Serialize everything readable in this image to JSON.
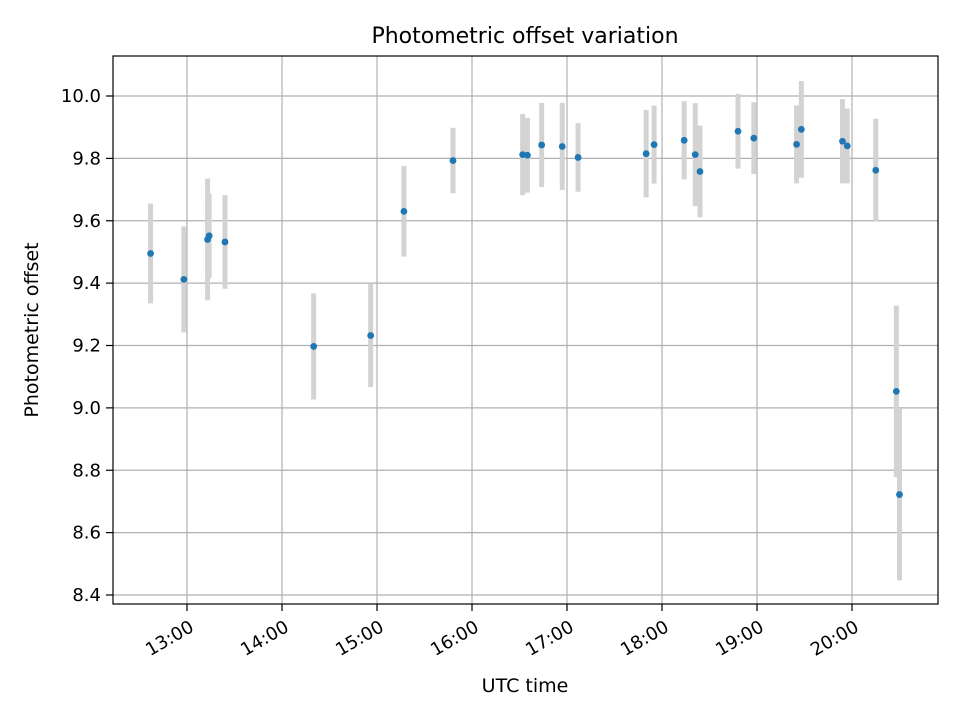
{
  "chart_data": {
    "type": "scatter",
    "title": "Photometric offset variation",
    "xlabel": "UTC time",
    "ylabel": "Photometric offset",
    "x_tick_labels": [
      "13:00",
      "14:00",
      "15:00",
      "16:00",
      "17:00",
      "18:00",
      "19:00",
      "20:00"
    ],
    "y_tick_labels": [
      "8.4",
      "8.6",
      "8.8",
      "9.0",
      "9.2",
      "9.4",
      "9.6",
      "9.8",
      "10.0"
    ],
    "grid": true,
    "colors": {
      "points": "#1f77b4",
      "errorbars": "#d3d3d3",
      "grid": "#b0b0b0"
    },
    "points": [
      {
        "x": "12:37",
        "y": 9.495,
        "err": 0.16
      },
      {
        "x": "12:58",
        "y": 9.412,
        "err": 0.17
      },
      {
        "x": "13:13",
        "y": 9.54,
        "err": 0.195
      },
      {
        "x": "13:14",
        "y": 9.552,
        "err": 0.135
      },
      {
        "x": "13:24",
        "y": 9.532,
        "err": 0.15
      },
      {
        "x": "14:20",
        "y": 9.197,
        "err": 0.17
      },
      {
        "x": "14:56",
        "y": 9.232,
        "err": 0.165
      },
      {
        "x": "15:17",
        "y": 9.63,
        "err": 0.145
      },
      {
        "x": "15:48",
        "y": 9.793,
        "err": 0.105
      },
      {
        "x": "16:32",
        "y": 9.812,
        "err": 0.13
      },
      {
        "x": "16:35",
        "y": 9.81,
        "err": 0.12
      },
      {
        "x": "16:44",
        "y": 9.843,
        "err": 0.135
      },
      {
        "x": "16:57",
        "y": 9.838,
        "err": 0.14
      },
      {
        "x": "17:07",
        "y": 9.803,
        "err": 0.11
      },
      {
        "x": "17:50",
        "y": 9.815,
        "err": 0.14
      },
      {
        "x": "17:55",
        "y": 9.844,
        "err": 0.125
      },
      {
        "x": "18:14",
        "y": 9.858,
        "err": 0.125
      },
      {
        "x": "18:21",
        "y": 9.812,
        "err": 0.165
      },
      {
        "x": "18:24",
        "y": 9.758,
        "err": 0.147
      },
      {
        "x": "18:48",
        "y": 9.887,
        "err": 0.12
      },
      {
        "x": "18:58",
        "y": 9.865,
        "err": 0.115
      },
      {
        "x": "19:25",
        "y": 9.845,
        "err": 0.125
      },
      {
        "x": "19:28",
        "y": 9.893,
        "err": 0.155
      },
      {
        "x": "19:54",
        "y": 9.855,
        "err": 0.135
      },
      {
        "x": "19:57",
        "y": 9.84,
        "err": 0.12
      },
      {
        "x": "20:15",
        "y": 9.762,
        "err": 0.165
      },
      {
        "x": "20:28",
        "y": 9.053,
        "err": 0.275
      },
      {
        "x": "20:30",
        "y": 8.722,
        "err": 0.275
      }
    ]
  }
}
